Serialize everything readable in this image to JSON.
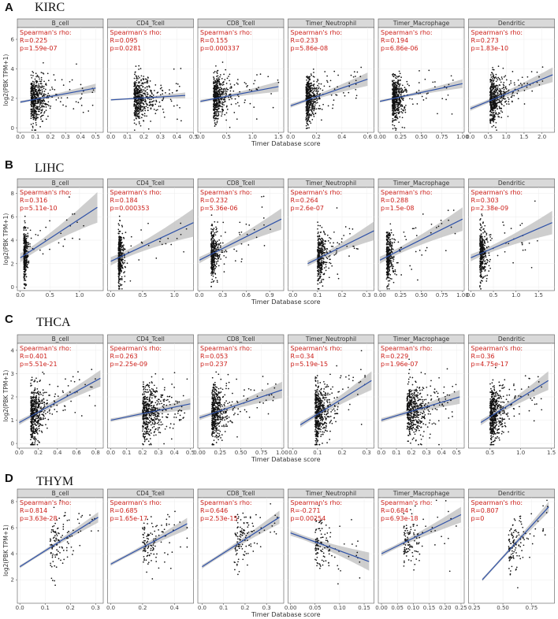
{
  "chart_data": {
    "type": "scatter",
    "x_axis_label": "Timer Database score",
    "y_axis_label": "log2(PBK TPM+1)",
    "stat_title": "Spearman's rho:",
    "grid": true,
    "trend_color": "#2f52a8",
    "point_color": "#111111",
    "stat_color": "#cc1f1a",
    "ci_color": "#bdbdbd",
    "rows": [
      {
        "letter": "A",
        "name": "KIRC",
        "ylim": [
          -0.3,
          6.8
        ],
        "yticks": [
          "0",
          "2",
          "4",
          "6"
        ],
        "panels": [
          {
            "cell": "B_cell",
            "R": "R=0.225",
            "p": "p=1.59e-07",
            "xlim": [
              -0.02,
              0.55
            ],
            "xticks": [
              "0.0",
              "0.1",
              "0.2",
              "0.3",
              "0.4",
              "0.5"
            ],
            "n": 500,
            "xm": 0.07,
            "xsd": 0.07,
            "xmax": 0.52,
            "trend": [
              [
                0,
                1.75
              ],
              [
                0.5,
                2.7
              ]
            ],
            "ci": 0.3,
            "ymean": 2.0,
            "ysd": 0.9
          },
          {
            "cell": "CD4_Tcell",
            "R": "R=0.095",
            "p": "p=0.0281",
            "xlim": [
              -0.02,
              0.5
            ],
            "xticks": [
              "0.0",
              "0.1",
              "0.2",
              "0.3",
              "0.4",
              "0.5"
            ],
            "n": 500,
            "xm": 0.14,
            "xsd": 0.07,
            "xmax": 0.45,
            "trend": [
              [
                0,
                1.9
              ],
              [
                0.45,
                2.2
              ]
            ],
            "ci": 0.2,
            "ymean": 2.0,
            "ysd": 0.9
          },
          {
            "cell": "CD8_Tcell",
            "R": "R=0.155",
            "p": "p=0.000337",
            "xlim": [
              -0.05,
              1.6
            ],
            "xticks": [
              "0.0",
              "0.5",
              "1.0",
              "1.5"
            ],
            "n": 500,
            "xm": 0.25,
            "xsd": 0.18,
            "xmax": 1.5,
            "trend": [
              [
                0,
                1.8
              ],
              [
                1.5,
                2.8
              ]
            ],
            "ci": 0.35,
            "ymean": 2.0,
            "ysd": 0.9
          },
          {
            "cell": "Timer_Neutrophil",
            "R": "R=0.233",
            "p": "p=5.86e-08",
            "xlim": [
              -0.02,
              0.65
            ],
            "xticks": [
              "0.0",
              "0.2",
              "0.4",
              "0.6"
            ],
            "n": 500,
            "xm": 0.12,
            "xsd": 0.06,
            "xmax": 0.55,
            "trend": [
              [
                0,
                1.5
              ],
              [
                0.6,
                3.3
              ]
            ],
            "ci": 0.45,
            "ymean": 2.0,
            "ysd": 0.9
          },
          {
            "cell": "Timer_Macrophage",
            "R": "R=0.194",
            "p": "p=6.86e-06",
            "xlim": [
              -0.02,
              1.02
            ],
            "xticks": [
              "0.00",
              "0.25",
              "0.50",
              "0.75",
              "1.00"
            ],
            "n": 500,
            "xm": 0.15,
            "xsd": 0.1,
            "xmax": 0.9,
            "trend": [
              [
                0,
                1.8
              ],
              [
                1.0,
                3.0
              ]
            ],
            "ci": 0.3,
            "ymean": 2.0,
            "ysd": 0.9
          },
          {
            "cell": "Dendritic",
            "R": "R=0.273",
            "p": "p=1.83e-10",
            "xlim": [
              -0.05,
              2.35
            ],
            "xticks": [
              "0.0",
              "0.5",
              "1.0",
              "1.5",
              "2.0"
            ],
            "n": 500,
            "xm": 0.55,
            "xsd": 0.3,
            "xmax": 2.1,
            "trend": [
              [
                0,
                1.3
              ],
              [
                2.3,
                3.6
              ]
            ],
            "ci": 0.5,
            "ymean": 2.0,
            "ysd": 0.9
          }
        ]
      },
      {
        "letter": "B",
        "name": "LIHC",
        "ylim": [
          -0.3,
          8.5
        ],
        "yticks": [
          "0",
          "2",
          "4",
          "6",
          "8"
        ],
        "panels": [
          {
            "cell": "B_cell",
            "R": "R=0.316",
            "p": "p=5.11e-10",
            "xlim": [
              -0.05,
              1.4
            ],
            "xticks": [
              "0.0",
              "0.5",
              "1.0"
            ],
            "n": 370,
            "xm": 0.06,
            "xsd": 0.04,
            "xmax": 1.3,
            "trend": [
              [
                0,
                2.5
              ],
              [
                1.3,
                6.8
              ]
            ],
            "ci": 1.3,
            "ymean": 2.5,
            "ysd": 1.3
          },
          {
            "cell": "CD4_Tcell",
            "R": "R=0.184",
            "p": "p=0.000353",
            "xlim": [
              -0.05,
              1.3
            ],
            "xticks": [
              "0.0",
              "0.5",
              "1.0"
            ],
            "n": 370,
            "xm": 0.12,
            "xsd": 0.05,
            "xmax": 1.2,
            "trend": [
              [
                0,
                2.2
              ],
              [
                1.3,
                5.5
              ]
            ],
            "ci": 1.2,
            "ymean": 2.5,
            "ysd": 1.3
          },
          {
            "cell": "CD8_Tcell",
            "R": "R=0.232",
            "p": "p=5.36e-06",
            "xlim": [
              -0.02,
              1.08
            ],
            "xticks": [
              "0.0",
              "0.3",
              "0.6",
              "0.9"
            ],
            "n": 370,
            "xm": 0.15,
            "xsd": 0.07,
            "xmax": 0.95,
            "trend": [
              [
                0,
                2.3
              ],
              [
                1.05,
                5.8
              ]
            ],
            "ci": 0.9,
            "ymean": 2.5,
            "ysd": 1.3
          },
          {
            "cell": "Timer_Neutrophil",
            "R": "R=0.264",
            "p": "p=2.6e-07",
            "xlim": [
              -0.02,
              0.33
            ],
            "xticks": [
              "0.0",
              "0.1",
              "0.2",
              "0.3"
            ],
            "n": 370,
            "xm": 0.1,
            "xsd": 0.025,
            "xmax": 0.28,
            "trend": [
              [
                0.06,
                2.0
              ],
              [
                0.33,
                4.8
              ]
            ],
            "ci": 0.8,
            "ymean": 2.5,
            "ysd": 1.3
          },
          {
            "cell": "Timer_Macrophage",
            "R": "R=0.288",
            "p": "p=1.5e-08",
            "xlim": [
              -0.02,
              1.02
            ],
            "xticks": [
              "0.00",
              "0.25",
              "0.50",
              "0.75",
              "1.00"
            ],
            "n": 370,
            "xm": 0.08,
            "xsd": 0.06,
            "xmax": 0.95,
            "trend": [
              [
                0,
                2.3
              ],
              [
                1.0,
                5.8
              ]
            ],
            "ci": 1.0,
            "ymean": 2.5,
            "ysd": 1.3
          },
          {
            "cell": "Dendritic",
            "R": "R=0.303",
            "p": "p=2.38e-09",
            "xlim": [
              -0.05,
              1.85
            ],
            "xticks": [
              "0.0",
              "0.5",
              "1.0",
              "1.5"
            ],
            "n": 370,
            "xm": 0.2,
            "xsd": 0.12,
            "xmax": 1.6,
            "trend": [
              [
                0,
                2.5
              ],
              [
                1.8,
                5.5
              ]
            ],
            "ci": 1.0,
            "ymean": 2.5,
            "ysd": 1.3
          }
        ]
      },
      {
        "letter": "C",
        "name": "THCA",
        "ylim": [
          -0.2,
          4.3
        ],
        "yticks": [
          "0",
          "1",
          "2",
          "3",
          "4"
        ],
        "panels": [
          {
            "cell": "B_cell",
            "R": "R=0.401",
            "p": "p=5.51e-21",
            "xlim": [
              -0.02,
              0.88
            ],
            "xticks": [
              "0.0",
              "0.2",
              "0.4",
              "0.6",
              "0.8"
            ],
            "n": 500,
            "xm": 0.12,
            "xsd": 0.1,
            "xmax": 0.8,
            "trend": [
              [
                0,
                0.9
              ],
              [
                0.85,
                2.8
              ]
            ],
            "ci": 0.35,
            "ymean": 1.2,
            "ysd": 0.7
          },
          {
            "cell": "CD4_Tcell",
            "R": "R=0.263",
            "p": "p=2.25e-09",
            "xlim": [
              -0.02,
              0.52
            ],
            "xticks": [
              "0.0",
              "0.1",
              "0.2",
              "0.3",
              "0.4",
              "0.5"
            ],
            "n": 500,
            "xm": 0.2,
            "xsd": 0.1,
            "xmax": 0.48,
            "trend": [
              [
                0,
                1.0
              ],
              [
                0.5,
                1.7
              ]
            ],
            "ci": 0.25,
            "ymean": 1.2,
            "ysd": 0.7
          },
          {
            "cell": "CD8_Tcell",
            "R": "R=0.053",
            "p": "p=0.237",
            "xlim": [
              -0.02,
              1.02
            ],
            "xticks": [
              "0.00",
              "0.25",
              "0.50",
              "0.75",
              "1.00"
            ],
            "n": 500,
            "xm": 0.15,
            "xsd": 0.12,
            "xmax": 0.95,
            "trend": [
              [
                0,
                1.1
              ],
              [
                1.0,
                2.3
              ]
            ],
            "ci": 0.35,
            "ymean": 1.2,
            "ysd": 0.7
          },
          {
            "cell": "Timer_Neutrophil",
            "R": "R=0.34",
            "p": "p=5.19e-15",
            "xlim": [
              -0.02,
              0.33
            ],
            "xticks": [
              "0.0",
              "0.1",
              "0.2",
              "0.3"
            ],
            "n": 500,
            "xm": 0.09,
            "xsd": 0.04,
            "xmax": 0.3,
            "trend": [
              [
                0.03,
                0.8
              ],
              [
                0.32,
                2.7
              ]
            ],
            "ci": 0.4,
            "ymean": 1.2,
            "ysd": 0.7
          },
          {
            "cell": "Timer_Macrophage",
            "R": "R=0.229",
            "p": "p=1.96e-07",
            "xlim": [
              -0.02,
              0.55
            ],
            "xticks": [
              "0.0",
              "0.1",
              "0.2",
              "0.3",
              "0.4",
              "0.5"
            ],
            "n": 500,
            "xm": 0.17,
            "xsd": 0.1,
            "xmax": 0.5,
            "trend": [
              [
                0,
                1.0
              ],
              [
                0.52,
                2.0
              ]
            ],
            "ci": 0.3,
            "ymean": 1.2,
            "ysd": 0.7
          },
          {
            "cell": "Dendritic",
            "R": "R=0.36",
            "p": "p=4.75e-17",
            "xlim": [
              0.15,
              1.55
            ],
            "xticks": [
              "0.5",
              "1.0",
              "1.5"
            ],
            "n": 500,
            "xm": 0.5,
            "xsd": 0.15,
            "xmax": 1.4,
            "trend": [
              [
                0.35,
                0.9
              ],
              [
                1.45,
                2.7
              ]
            ],
            "ci": 0.4,
            "ymean": 1.2,
            "ysd": 0.7
          }
        ]
      },
      {
        "letter": "D",
        "name": "THYM",
        "ylim": [
          0.2,
          8.3
        ],
        "yticks": [
          "2",
          "4",
          "6",
          "8"
        ],
        "panels": [
          {
            "cell": "B_cell",
            "R": "R=0.814",
            "p": "p=3.63e-28",
            "xlim": [
              -0.01,
              0.33
            ],
            "xticks": [
              "0.0",
              "0.1",
              "0.2",
              "0.3"
            ],
            "n": 120,
            "xm": 0.12,
            "xsd": 0.08,
            "xmax": 0.31,
            "trend": [
              [
                0,
                3.0
              ],
              [
                0.31,
                6.8
              ]
            ],
            "ci": 0.4,
            "ymean": 4.5,
            "ysd": 1.2
          },
          {
            "cell": "CD4_Tcell",
            "R": "R=0.685",
            "p": "p=1.65e-17",
            "xlim": [
              -0.02,
              0.52
            ],
            "xticks": [
              "0.0",
              "0.2",
              "0.4"
            ],
            "n": 120,
            "xm": 0.2,
            "xsd": 0.12,
            "xmax": 0.48,
            "trend": [
              [
                0,
                3.2
              ],
              [
                0.48,
                6.3
              ]
            ],
            "ci": 0.45,
            "ymean": 4.5,
            "ysd": 1.2
          },
          {
            "cell": "CD8_Tcell",
            "R": "R=0.646",
            "p": "p=2.53e-15",
            "xlim": [
              -0.02,
              0.38
            ],
            "xticks": [
              "0.0",
              "0.1",
              "0.2",
              "0.3"
            ],
            "n": 120,
            "xm": 0.15,
            "xsd": 0.09,
            "xmax": 0.35,
            "trend": [
              [
                0,
                3.0
              ],
              [
                0.36,
                6.8
              ]
            ],
            "ci": 0.5,
            "ymean": 4.5,
            "ysd": 1.2
          },
          {
            "cell": "Timer_Neutrophil",
            "R": "R=-0.271",
            "p": "p=0.00254",
            "xlim": [
              -0.005,
              0.17
            ],
            "xticks": [
              "0.00",
              "0.05",
              "0.10",
              "0.15"
            ],
            "n": 120,
            "xm": 0.05,
            "xsd": 0.03,
            "xmax": 0.16,
            "trend": [
              [
                0,
                5.6
              ],
              [
                0.16,
                3.4
              ]
            ],
            "ci": 0.7,
            "ymean": 4.8,
            "ysd": 1.2
          },
          {
            "cell": "Timer_Macrophage",
            "R": "R=0.684",
            "p": "p=6.93e-18",
            "xlim": [
              -0.01,
              0.26
            ],
            "xticks": [
              "0.00",
              "0.05",
              "0.10",
              "0.15",
              "0.20",
              "0.25"
            ],
            "n": 120,
            "xm": 0.07,
            "xsd": 0.05,
            "xmax": 0.24,
            "trend": [
              [
                0,
                4.0
              ],
              [
                0.25,
                7.0
              ]
            ],
            "ci": 0.6,
            "ymean": 4.8,
            "ysd": 1.2
          },
          {
            "cell": "Dendritic",
            "R": "R=0.807",
            "p": "p=0",
            "xlim": [
              0.2,
              0.95
            ],
            "xticks": [
              "0.25",
              "0.50",
              "0.75"
            ],
            "n": 120,
            "xm": 0.55,
            "xsd": 0.12,
            "xmax": 0.9,
            "trend": [
              [
                0.32,
                2.0
              ],
              [
                0.9,
                7.6
              ]
            ],
            "ci": 0.4,
            "ymean": 4.5,
            "ysd": 1.2
          }
        ]
      }
    ]
  }
}
